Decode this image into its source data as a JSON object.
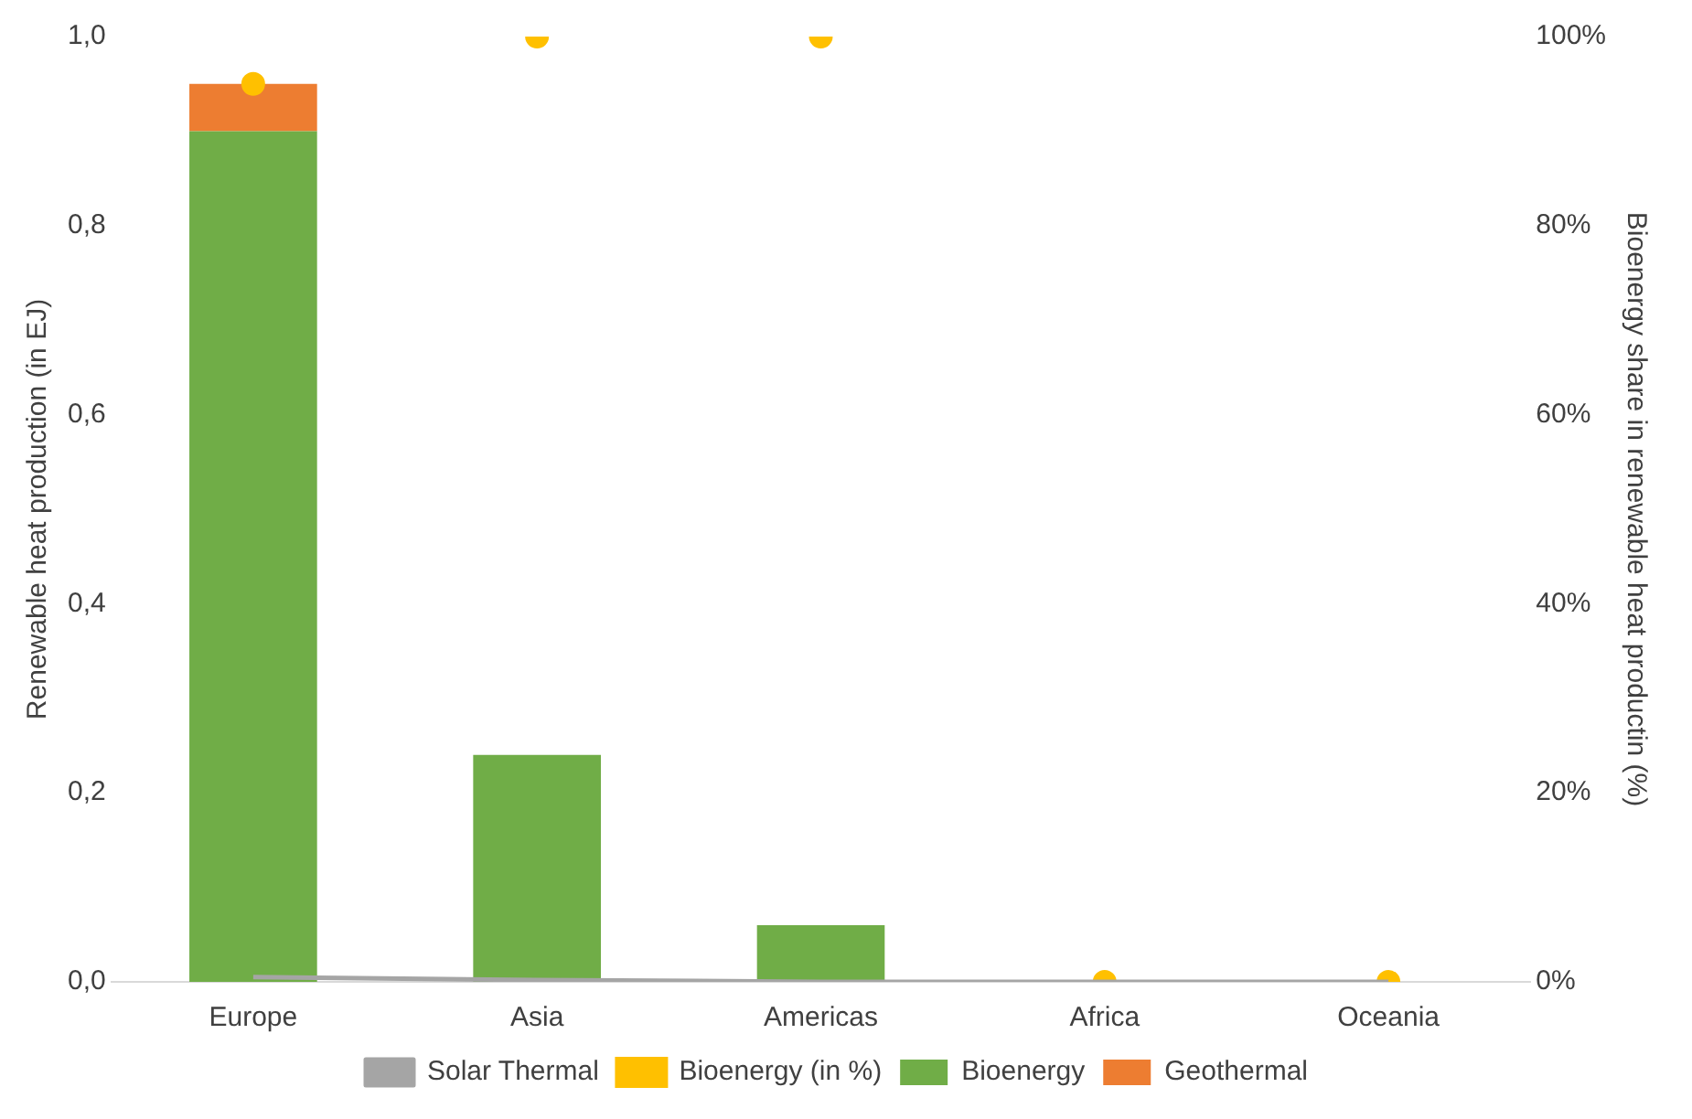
{
  "chart_data": {
    "type": "bar",
    "stacked": true,
    "categories": [
      "Europe",
      "Asia",
      "Americas",
      "Africa",
      "Oceania"
    ],
    "series": [
      {
        "name": "Bioenergy",
        "color": "#70ad47",
        "values": [
          0.9,
          0.24,
          0.06,
          0,
          0
        ]
      },
      {
        "name": "Geothermal",
        "color": "#ed7d31",
        "values": [
          0.05,
          0,
          0,
          0,
          0
        ]
      },
      {
        "name": "Solar Thermal",
        "type": "line",
        "color": "#a5a5a5",
        "marker": "none",
        "values": [
          0.005,
          0.002,
          0,
          0,
          0
        ]
      },
      {
        "name": "Bioenergy (in %)",
        "type": "scatter",
        "axis": "y2",
        "color": "#ffc000",
        "marker": "circle",
        "values": [
          95,
          100,
          100,
          0,
          0
        ]
      }
    ],
    "ylabel": "Renewable heat production (in EJ)",
    "y2label": "Bioenergy share in renewable heat productin (%)",
    "ylim": [
      0,
      1
    ],
    "yticks": [
      {
        "value": 0,
        "label": "0,0"
      },
      {
        "value": 0.2,
        "label": "0,2"
      },
      {
        "value": 0.4,
        "label": "0,4"
      },
      {
        "value": 0.6,
        "label": "0,6"
      },
      {
        "value": 0.8,
        "label": "0,8"
      },
      {
        "value": 1,
        "label": "1,0"
      }
    ],
    "y2lim": [
      0,
      100
    ],
    "y2ticks": [
      {
        "value": 0,
        "label": "0%"
      },
      {
        "value": 20,
        "label": "20%"
      },
      {
        "value": 40,
        "label": "40%"
      },
      {
        "value": 60,
        "label": "60%"
      },
      {
        "value": 80,
        "label": "80%"
      },
      {
        "value": 100,
        "label": "100%"
      }
    ],
    "grid": false,
    "legend": "bottom"
  }
}
